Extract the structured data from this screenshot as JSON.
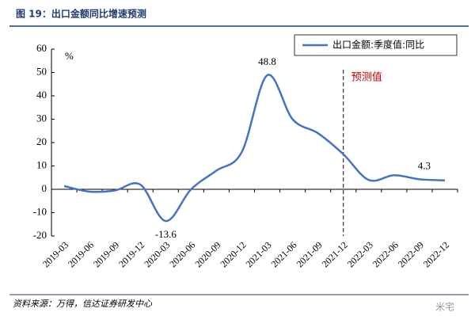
{
  "chart_data": {
    "type": "line",
    "title": "图 19：出口金额同比增速预测",
    "y_unit": "%",
    "categories": [
      "2019-03",
      "2019-06",
      "2019-09",
      "2019-12",
      "2020-03",
      "2020-06",
      "2020-09",
      "2020-12",
      "2021-03",
      "2021-06",
      "2021-09",
      "2021-12",
      "2022-03",
      "2022-06",
      "2022-09",
      "2022-12"
    ],
    "series": [
      {
        "name": "出口金额:季度值:同比",
        "color": "#4472c4",
        "values": [
          1.4,
          -1,
          -0.5,
          2,
          -13.6,
          0,
          8,
          16,
          48.8,
          30,
          24,
          15,
          4,
          6,
          4.3,
          3.8
        ],
        "value_labels": [
          null,
          null,
          null,
          null,
          "-13.6",
          null,
          null,
          null,
          "48.8",
          null,
          null,
          null,
          null,
          null,
          "4.3",
          null
        ]
      }
    ],
    "ylim": [
      -20,
      60
    ],
    "yticks": [
      -20,
      -10,
      0,
      10,
      20,
      30,
      40,
      50,
      60
    ],
    "forecast_start": "2021-12",
    "forecast_label": "预测值",
    "legend": "top-right",
    "source": "资料来源：万得，信达证券研发中心",
    "watermark": "米宅"
  }
}
